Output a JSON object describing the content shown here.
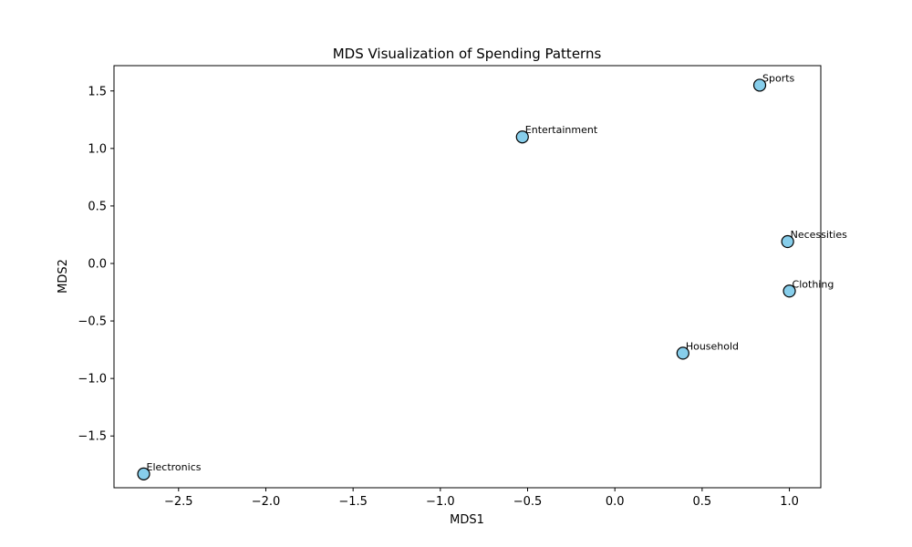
{
  "chart_data": {
    "type": "scatter",
    "title": "MDS Visualization of Spending Patterns",
    "xlabel": "MDS1",
    "ylabel": "MDS2",
    "xlim": [
      -2.87,
      1.18
    ],
    "ylim": [
      -1.95,
      1.72
    ],
    "xticks": [
      -2.5,
      -2.0,
      -1.5,
      -1.0,
      -0.5,
      0.0,
      0.5,
      1.0
    ],
    "xtick_labels": [
      "−2.5",
      "−2.0",
      "−1.5",
      "−1.0",
      "−0.5",
      "0.0",
      "0.5",
      "1.0"
    ],
    "yticks": [
      -1.5,
      -1.0,
      -0.5,
      0.0,
      0.5,
      1.0,
      1.5
    ],
    "ytick_labels": [
      "−1.5",
      "−1.0",
      "−0.5",
      "0.0",
      "0.5",
      "1.0",
      "1.5"
    ],
    "grid": false,
    "marker_color": "#87ceeb",
    "marker_edge_color": "#000000",
    "points": [
      {
        "label": "Sports",
        "x": 0.83,
        "y": 1.55
      },
      {
        "label": "Entertainment",
        "x": -0.53,
        "y": 1.1
      },
      {
        "label": "Necessities",
        "x": 0.99,
        "y": 0.19
      },
      {
        "label": "Clothing",
        "x": 1.0,
        "y": -0.24
      },
      {
        "label": "Household",
        "x": 0.39,
        "y": -0.78
      },
      {
        "label": "Electronics",
        "x": -2.7,
        "y": -1.83
      }
    ]
  }
}
